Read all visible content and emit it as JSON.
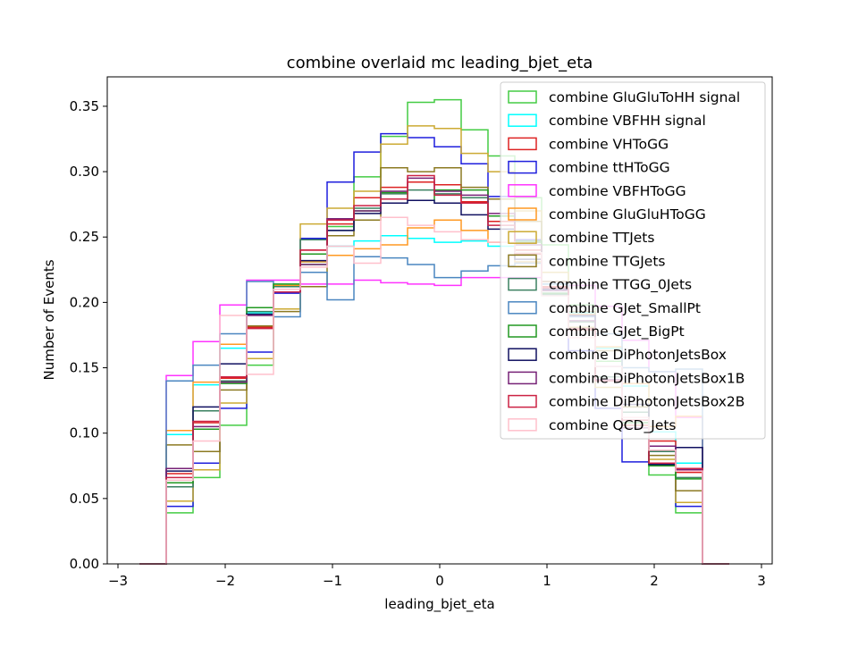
{
  "chart_data": {
    "type": "step-histogram",
    "title": "combine overlaid mc leading_bjet_eta",
    "xlabel": "leading_bjet_eta",
    "ylabel": "Number of Events",
    "xlim": [
      -3.1,
      3.1
    ],
    "ylim": [
      0.0,
      0.3725
    ],
    "xticks": [
      -3,
      -2,
      -1,
      0,
      1,
      2,
      3
    ],
    "xtick_labels": [
      "−3",
      "−2",
      "−1",
      "0",
      "1",
      "2",
      "3"
    ],
    "yticks": [
      0.0,
      0.05,
      0.1,
      0.15,
      0.2,
      0.25,
      0.3,
      0.35
    ],
    "ytick_labels": [
      "0.00",
      "0.05",
      "0.10",
      "0.15",
      "0.20",
      "0.25",
      "0.30",
      "0.35"
    ],
    "grid": false,
    "legend_position": "top-right",
    "bin_edges": [
      -2.8,
      -2.55,
      -2.3,
      -2.05,
      -1.8,
      -1.55,
      -1.3,
      -1.05,
      -0.8,
      -0.55,
      -0.3,
      -0.05,
      0.2,
      0.45,
      0.7,
      0.95,
      1.2,
      1.45,
      1.7,
      1.95,
      2.2,
      2.45,
      2.7
    ],
    "series": [
      {
        "name": "combine GluGluToHH signal",
        "color": "#44cc44",
        "values": [
          0,
          0.039,
          0.066,
          0.106,
          0.152,
          0.195,
          0.229,
          0.258,
          0.296,
          0.327,
          0.353,
          0.355,
          0.332,
          0.312,
          0.28,
          0.244,
          0.198,
          0.155,
          0.108,
          0.068,
          0.039,
          0
        ]
      },
      {
        "name": "combine VBFHH signal",
        "color": "#00ffff",
        "values": [
          0,
          0.099,
          0.137,
          0.165,
          0.192,
          0.214,
          0.231,
          0.243,
          0.247,
          0.251,
          0.249,
          0.246,
          0.247,
          0.243,
          0.231,
          0.214,
          0.192,
          0.165,
          0.136,
          0.101,
          0.077,
          0
        ]
      },
      {
        "name": "combine VHToGG",
        "color": "#dd2222",
        "values": [
          0,
          0.069,
          0.108,
          0.142,
          0.181,
          0.21,
          0.24,
          0.26,
          0.28,
          0.288,
          0.292,
          0.29,
          0.277,
          0.262,
          0.24,
          0.212,
          0.179,
          0.141,
          0.106,
          0.094,
          0.07,
          0
        ]
      },
      {
        "name": "combine ttHToGG",
        "color": "#1f1fdd",
        "values": [
          0,
          0.044,
          0.077,
          0.119,
          0.162,
          0.207,
          0.249,
          0.292,
          0.315,
          0.329,
          0.326,
          0.319,
          0.306,
          0.281,
          0.248,
          0.207,
          0.163,
          0.119,
          0.078,
          0.076,
          0.044,
          0
        ]
      },
      {
        "name": "combine VBFHToGG",
        "color": "#ff33ff",
        "values": [
          0,
          0.144,
          0.17,
          0.198,
          0.217,
          0.217,
          0.214,
          0.214,
          0.217,
          0.215,
          0.214,
          0.213,
          0.219,
          0.219,
          0.219,
          0.216,
          0.213,
          0.197,
          0.171,
          0.147,
          0.112,
          0
        ]
      },
      {
        "name": "combine GluGluHToGG",
        "color": "#ff9922",
        "values": [
          0,
          0.102,
          0.139,
          0.168,
          0.191,
          0.213,
          0.231,
          0.236,
          0.241,
          0.244,
          0.257,
          0.263,
          0.255,
          0.246,
          0.231,
          0.211,
          0.191,
          0.166,
          0.138,
          0.105,
          0.113,
          0
        ]
      },
      {
        "name": "combine TTJets",
        "color": "#ccaa33",
        "values": [
          0,
          0.048,
          0.072,
          0.123,
          0.157,
          0.195,
          0.26,
          0.272,
          0.285,
          0.321,
          0.335,
          0.333,
          0.314,
          0.3,
          0.27,
          0.223,
          0.181,
          0.135,
          0.12,
          0.08,
          0.047,
          0
        ]
      },
      {
        "name": "combine TTGJets",
        "color": "#8c7a22",
        "values": [
          0,
          0.091,
          0.086,
          0.133,
          0.182,
          0.193,
          0.212,
          0.251,
          0.263,
          0.303,
          0.3,
          0.303,
          0.288,
          0.279,
          0.262,
          0.216,
          0.193,
          0.163,
          0.12,
          0.083,
          0.056,
          0
        ]
      },
      {
        "name": "combine TTGG_0Jets",
        "color": "#3a8060",
        "values": [
          0,
          0.059,
          0.117,
          0.14,
          0.193,
          0.212,
          0.248,
          0.255,
          0.272,
          0.283,
          0.286,
          0.283,
          0.28,
          0.266,
          0.246,
          0.206,
          0.185,
          0.143,
          0.116,
          0.086,
          0.066,
          0
        ]
      },
      {
        "name": "combine GJet_SmallPt",
        "color": "#4a86c0",
        "values": [
          0,
          0.14,
          0.152,
          0.176,
          0.216,
          0.189,
          0.223,
          0.202,
          0.235,
          0.234,
          0.229,
          0.219,
          0.224,
          0.228,
          0.23,
          0.214,
          0.189,
          0.176,
          0.15,
          0.147,
          0.149,
          0
        ]
      },
      {
        "name": "combine GJet_BigPt",
        "color": "#229922",
        "values": [
          0,
          0.062,
          0.103,
          0.138,
          0.196,
          0.214,
          0.237,
          0.263,
          0.27,
          0.284,
          0.278,
          0.286,
          0.286,
          0.266,
          0.247,
          0.207,
          0.18,
          0.14,
          0.108,
          0.075,
          0.065,
          0
        ]
      },
      {
        "name": "combine DiPhotonJetsBox",
        "color": "#101060",
        "values": [
          0,
          0.071,
          0.12,
          0.153,
          0.191,
          0.21,
          0.232,
          0.255,
          0.268,
          0.276,
          0.278,
          0.276,
          0.267,
          0.256,
          0.233,
          0.21,
          0.19,
          0.151,
          0.122,
          0.076,
          0.089,
          0
        ]
      },
      {
        "name": "combine DiPhotonJetsBox1B",
        "color": "#772277",
        "values": [
          0,
          0.073,
          0.105,
          0.139,
          0.19,
          0.208,
          0.229,
          0.264,
          0.27,
          0.285,
          0.295,
          0.285,
          0.282,
          0.268,
          0.244,
          0.209,
          0.186,
          0.141,
          0.104,
          0.09,
          0.072,
          0
        ]
      },
      {
        "name": "combine DiPhotonJetsBox2B",
        "color": "#cc2244",
        "values": [
          0,
          0.066,
          0.109,
          0.143,
          0.18,
          0.208,
          0.24,
          0.263,
          0.274,
          0.279,
          0.297,
          0.282,
          0.276,
          0.259,
          0.237,
          0.211,
          0.18,
          0.14,
          0.11,
          0.077,
          0.073,
          0
        ]
      },
      {
        "name": "combine QCD_Jets",
        "color": "#ffc0cc",
        "values": [
          0,
          0.064,
          0.094,
          0.19,
          0.145,
          0.21,
          0.227,
          0.243,
          0.23,
          0.265,
          0.259,
          0.254,
          0.248,
          0.246,
          0.238,
          0.205,
          0.173,
          0.151,
          0.112,
          0.087,
          0.071,
          0
        ]
      }
    ]
  }
}
